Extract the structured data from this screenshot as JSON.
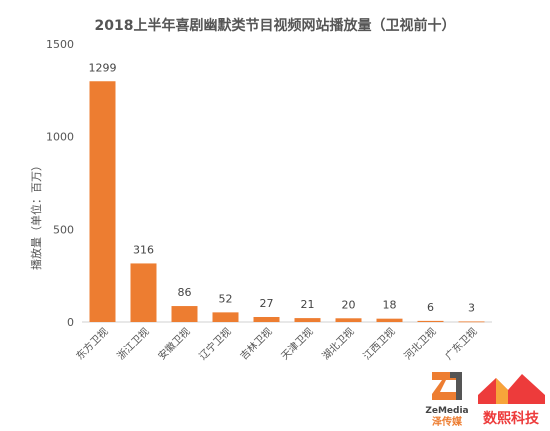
{
  "chart_data": {
    "type": "bar",
    "title": "2018上半年喜剧幽默类节目视频网站播放量（卫视前十）",
    "ylabel": "播放量（单位：百万）",
    "categories": [
      "东方卫视",
      "浙江卫视",
      "安徽卫视",
      "辽宁卫视",
      "吉林卫视",
      "天津卫视",
      "湖北卫视",
      "江西卫视",
      "河北卫视",
      "广东卫视"
    ],
    "values": [
      1299,
      316,
      86,
      52,
      27,
      21,
      20,
      18,
      6,
      3
    ],
    "ylim": [
      0,
      1500
    ],
    "yticks": [
      0,
      500,
      1000,
      1500
    ],
    "grid": false,
    "bar_color": "#ED7D31"
  },
  "logos": {
    "zemedia_name": "ZeMedia",
    "zemedia_cn": "泽传媒",
    "shuxi": "数熙科技"
  }
}
